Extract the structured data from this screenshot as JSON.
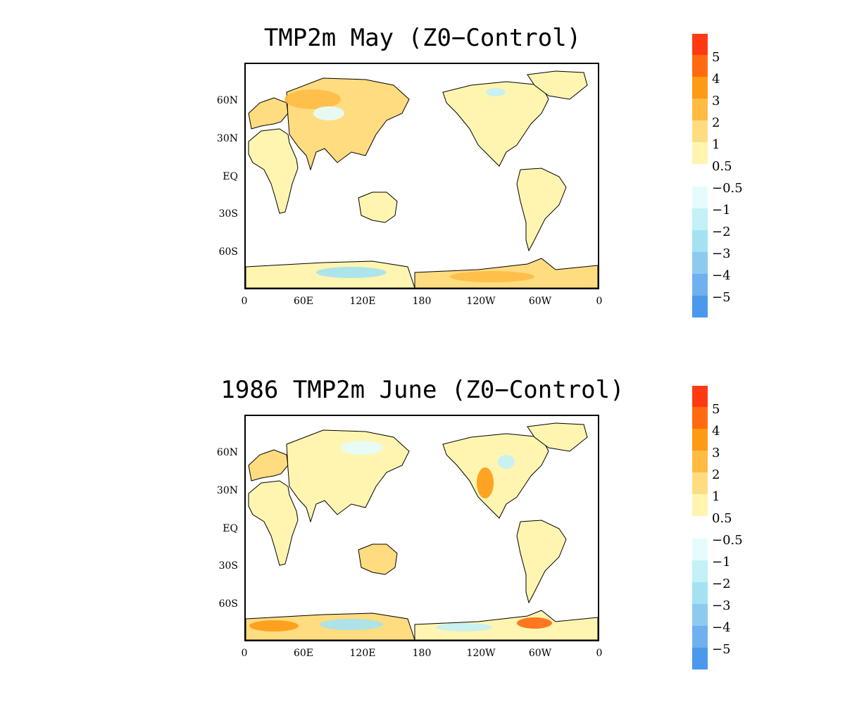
{
  "colors": {
    "w5": "#ff3a10",
    "w4": "#ff6a10",
    "w3": "#ff9a14",
    "w2": "#ffbb44",
    "w1": "#ffdc80",
    "w05": "#fff5b0",
    "c05": "#e6fcfc",
    "c1": "#c3f1f6",
    "c2": "#a4e2f2",
    "c3": "#8ccaf0",
    "c4": "#6fb1ee",
    "c5": "#4b98ec",
    "coast": "#000000"
  },
  "axes": {
    "lat_ticks": [
      "60N",
      "30N",
      "EQ",
      "30S",
      "60S"
    ],
    "lon_ticks": [
      "0",
      "60E",
      "120E",
      "180",
      "120W",
      "60W",
      "0"
    ]
  },
  "colorbar": {
    "labels": [
      "5",
      "4",
      "3",
      "2",
      "1",
      "0.5",
      "−0.5",
      "−1",
      "−2",
      "−3",
      "−4",
      "−5"
    ]
  },
  "panels": [
    {
      "title": "TMP2m May (Z0−Control)"
    },
    {
      "title": "1986 TMP2m June (Z0−Control)"
    }
  ]
}
